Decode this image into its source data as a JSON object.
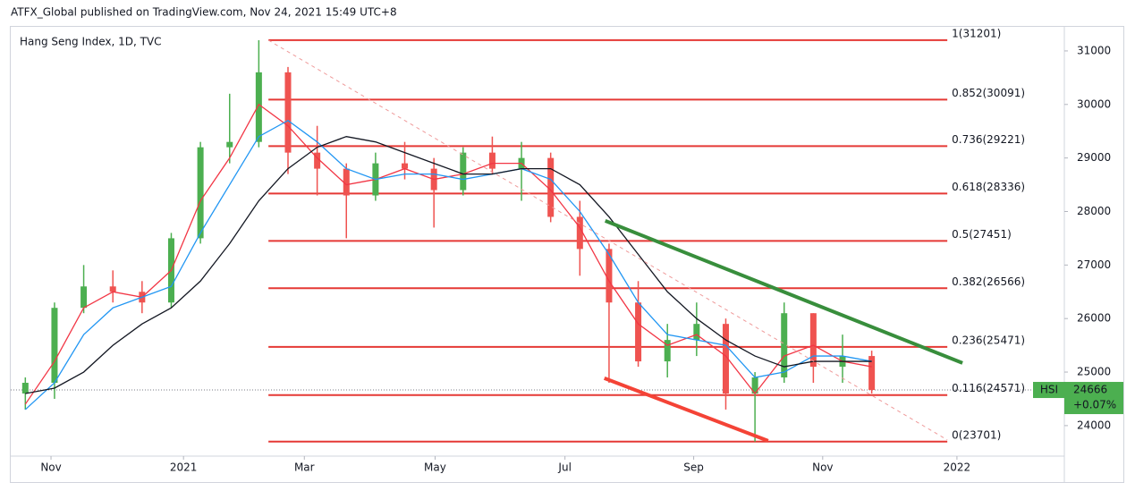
{
  "header": "ATFX_Global published on TradingView.com, Nov 24, 2021 15:49 UTC+8",
  "chart_data": {
    "type": "candlestick",
    "title": "Hang Seng Index, 1D, TVC",
    "xlim": [
      -0.5,
      35.6
    ],
    "ylim": [
      23430,
      31450
    ],
    "xticks": [
      {
        "value": 0.88,
        "label": "Nov"
      },
      {
        "value": 5.42,
        "label": "2021"
      },
      {
        "value": 9.56,
        "label": "Mar"
      },
      {
        "value": 14.04,
        "label": "May"
      },
      {
        "value": 18.49,
        "label": "Jul"
      },
      {
        "value": 22.9,
        "label": "Sep"
      },
      {
        "value": 27.32,
        "label": "Nov"
      },
      {
        "value": 31.92,
        "label": "2022"
      }
    ],
    "yticks": [
      24000,
      25000,
      26000,
      27000,
      28000,
      29000,
      30000,
      31000
    ],
    "up_color": "#4caf50",
    "down_color": "#ef5350",
    "candles": {
      "open": [
        24600,
        24800,
        26200,
        26600,
        26500,
        26300,
        27500,
        29200,
        29300,
        30600,
        29100,
        28800,
        28300,
        28900,
        28800,
        28400,
        29100,
        28800,
        29000,
        27900,
        27300,
        26300,
        25200,
        25600,
        25900,
        24600,
        24900,
        26100,
        25100,
        25300
      ],
      "high": [
        24900,
        26300,
        27000,
        26900,
        26700,
        27600,
        29300,
        30200,
        31200,
        30700,
        29600,
        28900,
        29100,
        29300,
        29000,
        29200,
        29400,
        29300,
        29100,
        28200,
        27400,
        26700,
        25900,
        26300,
        26000,
        25000,
        26300,
        26100,
        25700,
        25400
      ],
      "low": [
        24300,
        24500,
        26100,
        26300,
        26100,
        26200,
        27400,
        28900,
        29200,
        28700,
        28300,
        27500,
        28200,
        28600,
        27700,
        28300,
        28700,
        28200,
        27800,
        26800,
        24800,
        25100,
        24900,
        25300,
        24300,
        23700,
        24800,
        24800,
        24800,
        24600
      ],
      "close": [
        24800,
        26200,
        26600,
        26500,
        26300,
        27500,
        29200,
        29300,
        30600,
        29100,
        28800,
        28300,
        28900,
        28800,
        28400,
        29100,
        28800,
        29000,
        27900,
        27300,
        26300,
        25200,
        25600,
        25900,
        24600,
        24900,
        26100,
        25100,
        25300,
        24666
      ]
    },
    "series": [
      {
        "color": "#f23645",
        "values": [
          24400,
          25200,
          26200,
          26500,
          26400,
          26900,
          28200,
          29000,
          30000,
          29600,
          29000,
          28500,
          28600,
          28800,
          28600,
          28700,
          28900,
          28900,
          28400,
          27700,
          26700,
          25900,
          25500,
          25700,
          25300,
          24600,
          25300,
          25500,
          25200,
          25100
        ]
      },
      {
        "color": "#2196f3",
        "values": [
          24300,
          24800,
          25700,
          26200,
          26400,
          26600,
          27600,
          28500,
          29400,
          29700,
          29300,
          28800,
          28600,
          28700,
          28700,
          28600,
          28700,
          28800,
          28600,
          28000,
          27200,
          26300,
          25700,
          25600,
          25500,
          24900,
          25000,
          25300,
          25300,
          25200
        ]
      },
      {
        "color": "#131722",
        "values": [
          24600,
          24700,
          25000,
          25500,
          25900,
          26200,
          26700,
          27400,
          28200,
          28800,
          29200,
          29400,
          29300,
          29100,
          28900,
          28700,
          28700,
          28800,
          28800,
          28500,
          27900,
          27200,
          26500,
          26000,
          25600,
          25300,
          25100,
          25200,
          25200,
          25200
        ]
      }
    ],
    "fib_color": "#e53935",
    "fib_levels": [
      {
        "value": 31201,
        "label": "1(31201)"
      },
      {
        "value": 30091,
        "label": "0.852(30091)"
      },
      {
        "value": 29221,
        "label": "0.736(29221)"
      },
      {
        "value": 28336,
        "label": "0.618(28336)"
      },
      {
        "value": 27451,
        "label": "0.5(27451)"
      },
      {
        "value": 26566,
        "label": "0.382(26566)"
      },
      {
        "value": 25471,
        "label": "0.236(25471)"
      },
      {
        "value": 24571,
        "label": "0.116(24571)"
      },
      {
        "value": 23701,
        "label": "0(23701)"
      }
    ],
    "fib_x": [
      8.33,
      31.59
    ],
    "trendlines": [
      {
        "color": "#388e3c",
        "x": [
          19.87,
          32.11
        ],
        "y": [
          27826,
          25169
        ]
      },
      {
        "color": "#f44336",
        "x": [
          19.84,
          25.45
        ],
        "y": [
          24885,
          23716
        ]
      },
      {
        "color": "#ef9a9a",
        "dashed": true,
        "x": [
          8.33,
          31.59
        ],
        "y": [
          31200,
          23733
        ]
      }
    ],
    "last": {
      "symbol": "HSI",
      "value": 24666,
      "change": 0.07,
      "change_label": "+0.07%",
      "color": "#4caf50"
    }
  }
}
